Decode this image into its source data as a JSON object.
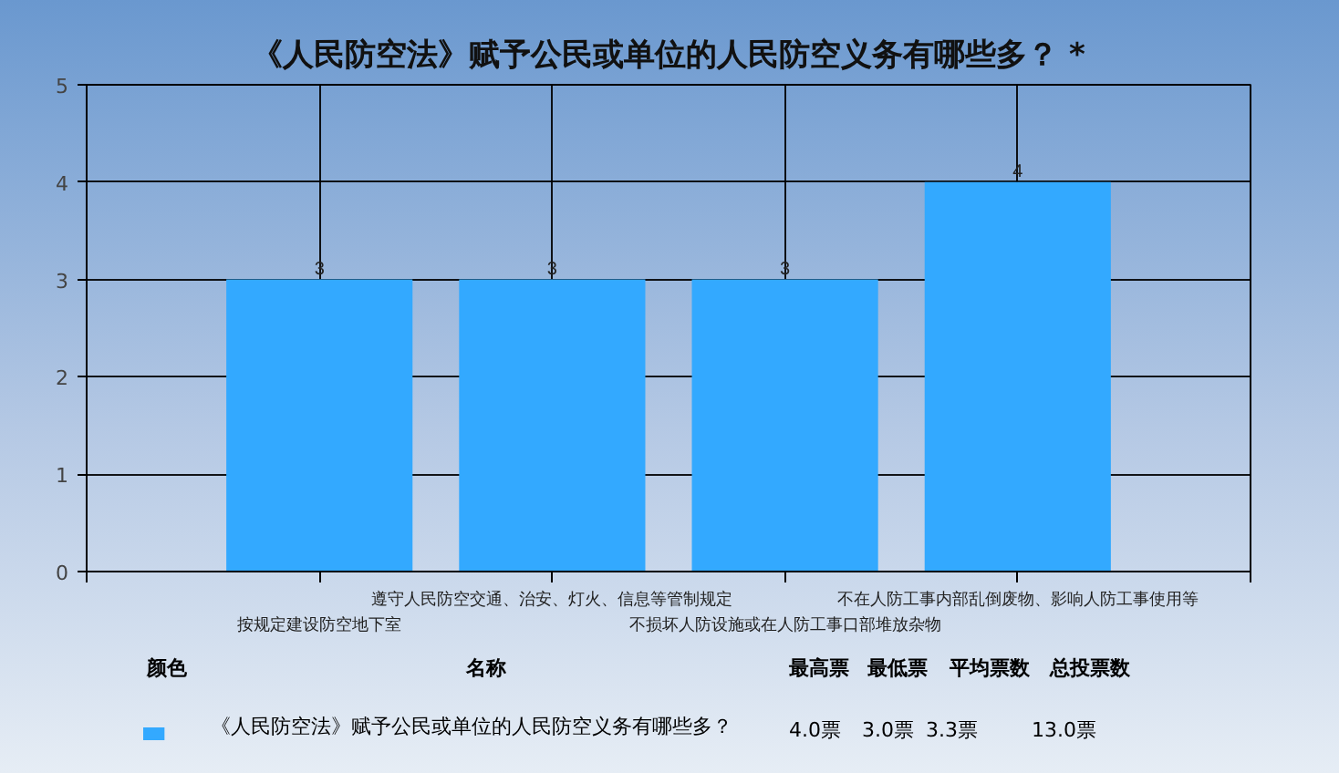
{
  "chart_data": {
    "type": "bar",
    "title": "《人民防空法》赋予公民或单位的人民防空义务有哪些多？ *",
    "categories": [
      "按规定建设防空地下室",
      "遵守人民防空交通、治安、灯火、信息等管制规定",
      "不损坏人防设施或在人防工事口部堆放杂物",
      "不在人防工事内部乱倒废物、影响人防工事使用等"
    ],
    "series": [
      {
        "name": "《人民防空法》赋予公民或单位的人民防空义务有哪些多？",
        "color": "#33a9ff",
        "values": [
          3,
          3,
          3,
          4
        ]
      }
    ],
    "ylim": [
      0,
      5
    ],
    "yticks": [
      0,
      1,
      2,
      3,
      4,
      5
    ],
    "grid": true,
    "data_labels": true,
    "annotations": [
      "颜色",
      "名称",
      "最高票",
      "最低票",
      "平均票数",
      "总投票数",
      "4.0票",
      "3.0票",
      "3.3票",
      "13.0票"
    ]
  }
}
